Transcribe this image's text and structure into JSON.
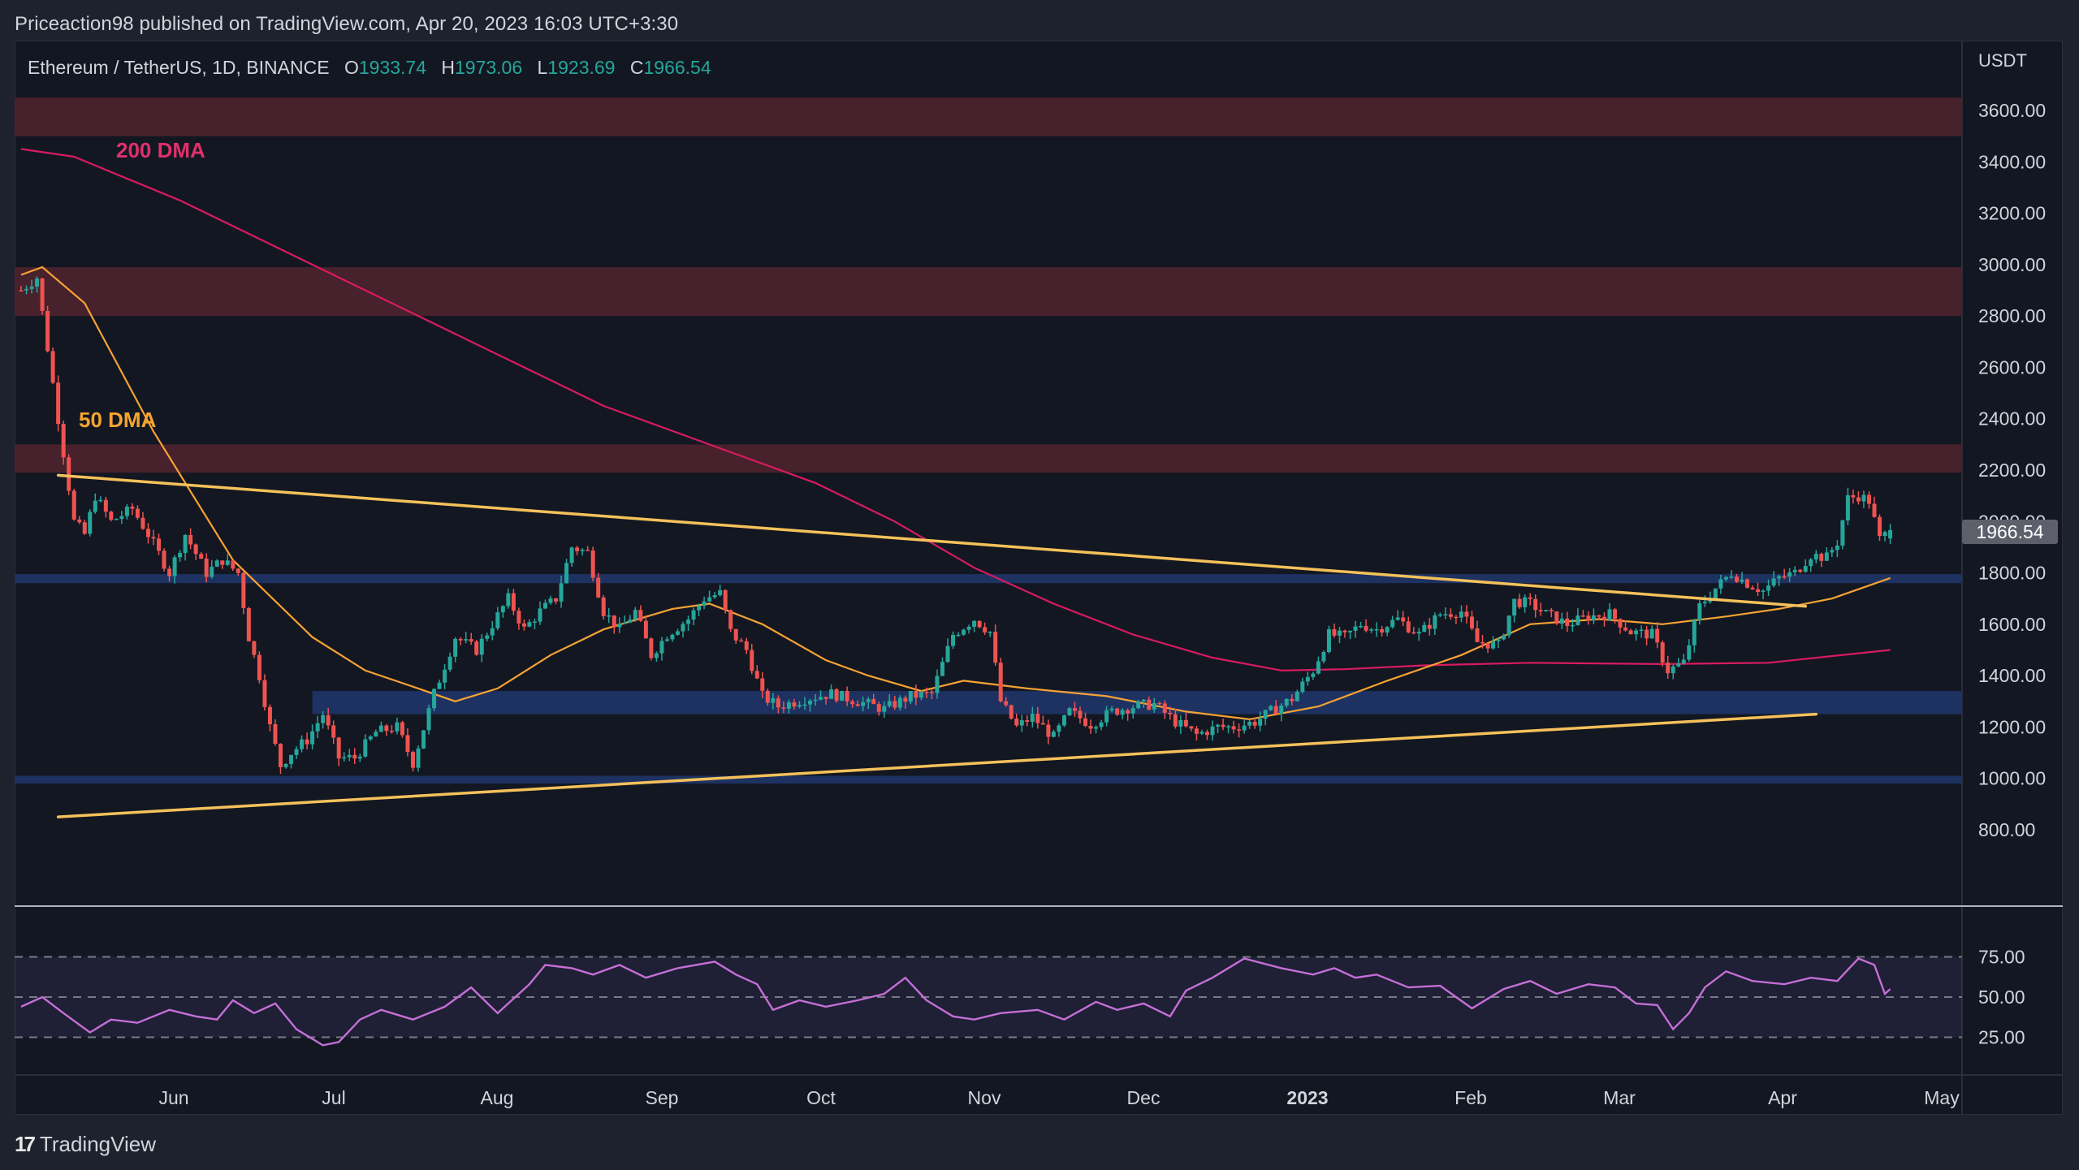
{
  "header": {
    "published": "Priceaction98 published on TradingView.com, Apr 20, 2023 16:03 UTC+3:30"
  },
  "legend": {
    "symbol": "Ethereum / TetherUS, 1D, BINANCE",
    "o_label": "O",
    "o_value": "1933.74",
    "h_label": "H",
    "h_value": "1973.06",
    "l_label": "L",
    "l_value": "1923.69",
    "c_label": "C",
    "c_value": "1966.54"
  },
  "price_axis": {
    "currency": "USDT",
    "ticks": [
      "3600.00",
      "3400.00",
      "3200.00",
      "3000.00",
      "2800.00",
      "2600.00",
      "2400.00",
      "2200.00",
      "2000.00",
      "1800.00",
      "1600.00",
      "1400.00",
      "1200.00",
      "1000.00",
      "800.00"
    ],
    "last_price": "1966.54"
  },
  "rsi_axis": {
    "ticks": [
      "75.00",
      "50.00",
      "25.00"
    ]
  },
  "time_axis": {
    "labels": [
      "Jun",
      "Jul",
      "Aug",
      "Sep",
      "Oct",
      "Nov",
      "Dec",
      "2023",
      "Feb",
      "Mar",
      "Apr",
      "May"
    ]
  },
  "annotations": {
    "dma200": "200 DMA",
    "dma50": "50 DMA"
  },
  "footer": {
    "brand": "TradingView",
    "brand_mark": "17"
  },
  "colors": {
    "up": "#26a69a",
    "down": "#ef5350",
    "dma50": "#f7a233",
    "dma200": "#d81b60",
    "trendline": "#f5c15a",
    "resistance_zone": "#4a222c",
    "support_zone": "#1f3466",
    "rsi": "#c46fd6"
  },
  "chart_data": {
    "type": "candlestick",
    "title": "Ethereum / TetherUS, 1D, BINANCE",
    "ylabel": "USDT",
    "ylim": [
      700,
      3750
    ],
    "y_ticks": [
      800,
      1000,
      1200,
      1400,
      1600,
      1800,
      2000,
      2200,
      2400,
      2600,
      2800,
      3000,
      3200,
      3400,
      3600
    ],
    "x_ticks": [
      "Jun",
      "Jul",
      "Aug",
      "Sep",
      "Oct",
      "Nov",
      "Dec",
      "2023",
      "Feb",
      "Mar",
      "Apr",
      "May"
    ],
    "x_start": "2022-05-02",
    "last_bar": {
      "date": "2023-04-20",
      "open": 1933.74,
      "high": 1973.06,
      "low": 1923.69,
      "close": 1966.54
    },
    "close_keypoints": [
      {
        "day": 0,
        "p": 2900
      },
      {
        "day": 3,
        "p": 2950
      },
      {
        "day": 7,
        "p": 2400
      },
      {
        "day": 10,
        "p": 2000
      },
      {
        "day": 12,
        "p": 1950
      },
      {
        "day": 14,
        "p": 2100
      },
      {
        "day": 17,
        "p": 2000
      },
      {
        "day": 21,
        "p": 2050
      },
      {
        "day": 24,
        "p": 1950
      },
      {
        "day": 28,
        "p": 1800
      },
      {
        "day": 31,
        "p": 1950
      },
      {
        "day": 35,
        "p": 1800
      },
      {
        "day": 38,
        "p": 1850
      },
      {
        "day": 41,
        "p": 1800
      },
      {
        "day": 43,
        "p": 1550
      },
      {
        "day": 45,
        "p": 1400
      },
      {
        "day": 47,
        "p": 1200
      },
      {
        "day": 49,
        "p": 1050
      },
      {
        "day": 51,
        "p": 1100
      },
      {
        "day": 54,
        "p": 1150
      },
      {
        "day": 57,
        "p": 1250
      },
      {
        "day": 60,
        "p": 1080
      },
      {
        "day": 63,
        "p": 1080
      },
      {
        "day": 67,
        "p": 1180
      },
      {
        "day": 71,
        "p": 1200
      },
      {
        "day": 74,
        "p": 1060
      },
      {
        "day": 78,
        "p": 1330
      },
      {
        "day": 82,
        "p": 1550
      },
      {
        "day": 86,
        "p": 1500
      },
      {
        "day": 89,
        "p": 1600
      },
      {
        "day": 92,
        "p": 1700
      },
      {
        "day": 95,
        "p": 1580
      },
      {
        "day": 98,
        "p": 1650
      },
      {
        "day": 101,
        "p": 1700
      },
      {
        "day": 104,
        "p": 1900
      },
      {
        "day": 107,
        "p": 1880
      },
      {
        "day": 110,
        "p": 1650
      },
      {
        "day": 113,
        "p": 1580
      },
      {
        "day": 116,
        "p": 1650
      },
      {
        "day": 119,
        "p": 1480
      },
      {
        "day": 122,
        "p": 1560
      },
      {
        "day": 126,
        "p": 1620
      },
      {
        "day": 129,
        "p": 1700
      },
      {
        "day": 132,
        "p": 1720
      },
      {
        "day": 134,
        "p": 1570
      },
      {
        "day": 137,
        "p": 1500
      },
      {
        "day": 140,
        "p": 1320
      },
      {
        "day": 143,
        "p": 1280
      },
      {
        "day": 148,
        "p": 1310
      },
      {
        "day": 153,
        "p": 1330
      },
      {
        "day": 158,
        "p": 1300
      },
      {
        "day": 163,
        "p": 1270
      },
      {
        "day": 168,
        "p": 1320
      },
      {
        "day": 172,
        "p": 1330
      },
      {
        "day": 176,
        "p": 1560
      },
      {
        "day": 180,
        "p": 1620
      },
      {
        "day": 183,
        "p": 1570
      },
      {
        "day": 185,
        "p": 1300
      },
      {
        "day": 188,
        "p": 1200
      },
      {
        "day": 191,
        "p": 1240
      },
      {
        "day": 195,
        "p": 1160
      },
      {
        "day": 198,
        "p": 1260
      },
      {
        "day": 202,
        "p": 1210
      },
      {
        "day": 206,
        "p": 1260
      },
      {
        "day": 210,
        "p": 1280
      },
      {
        "day": 214,
        "p": 1290
      },
      {
        "day": 218,
        "p": 1220
      },
      {
        "day": 222,
        "p": 1170
      },
      {
        "day": 226,
        "p": 1200
      },
      {
        "day": 229,
        "p": 1200
      },
      {
        "day": 233,
        "p": 1220
      },
      {
        "day": 236,
        "p": 1260
      },
      {
        "day": 240,
        "p": 1310
      },
      {
        "day": 244,
        "p": 1420
      },
      {
        "day": 247,
        "p": 1560
      },
      {
        "day": 250,
        "p": 1550
      },
      {
        "day": 253,
        "p": 1600
      },
      {
        "day": 256,
        "p": 1580
      },
      {
        "day": 260,
        "p": 1620
      },
      {
        "day": 264,
        "p": 1560
      },
      {
        "day": 268,
        "p": 1640
      },
      {
        "day": 272,
        "p": 1650
      },
      {
        "day": 275,
        "p": 1530
      },
      {
        "day": 279,
        "p": 1520
      },
      {
        "day": 282,
        "p": 1690
      },
      {
        "day": 285,
        "p": 1680
      },
      {
        "day": 288,
        "p": 1640
      },
      {
        "day": 292,
        "p": 1600
      },
      {
        "day": 296,
        "p": 1630
      },
      {
        "day": 300,
        "p": 1640
      },
      {
        "day": 304,
        "p": 1570
      },
      {
        "day": 308,
        "p": 1560
      },
      {
        "day": 311,
        "p": 1420
      },
      {
        "day": 314,
        "p": 1450
      },
      {
        "day": 317,
        "p": 1670
      },
      {
        "day": 320,
        "p": 1740
      },
      {
        "day": 323,
        "p": 1800
      },
      {
        "day": 326,
        "p": 1760
      },
      {
        "day": 329,
        "p": 1730
      },
      {
        "day": 332,
        "p": 1780
      },
      {
        "day": 335,
        "p": 1800
      },
      {
        "day": 338,
        "p": 1870
      },
      {
        "day": 341,
        "p": 1860
      },
      {
        "day": 343,
        "p": 1920
      },
      {
        "day": 345,
        "p": 2090
      },
      {
        "day": 347,
        "p": 2100
      },
      {
        "day": 349,
        "p": 2080
      },
      {
        "day": 351,
        "p": 1930
      },
      {
        "day": 353,
        "p": 1966.54
      }
    ],
    "dma50": {
      "name": "50 DMA",
      "points": [
        {
          "day": 0,
          "p": 2960
        },
        {
          "day": 4,
          "p": 2990
        },
        {
          "day": 12,
          "p": 2850
        },
        {
          "day": 25,
          "p": 2350
        },
        {
          "day": 40,
          "p": 1850
        },
        {
          "day": 55,
          "p": 1550
        },
        {
          "day": 65,
          "p": 1420
        },
        {
          "day": 75,
          "p": 1350
        },
        {
          "day": 82,
          "p": 1300
        },
        {
          "day": 90,
          "p": 1350
        },
        {
          "day": 100,
          "p": 1480
        },
        {
          "day": 110,
          "p": 1580
        },
        {
          "day": 123,
          "p": 1660
        },
        {
          "day": 130,
          "p": 1680
        },
        {
          "day": 140,
          "p": 1600
        },
        {
          "day": 152,
          "p": 1460
        },
        {
          "day": 160,
          "p": 1400
        },
        {
          "day": 170,
          "p": 1340
        },
        {
          "day": 178,
          "p": 1380
        },
        {
          "day": 190,
          "p": 1350
        },
        {
          "day": 205,
          "p": 1320
        },
        {
          "day": 220,
          "p": 1260
        },
        {
          "day": 232,
          "p": 1230
        },
        {
          "day": 245,
          "p": 1280
        },
        {
          "day": 258,
          "p": 1380
        },
        {
          "day": 272,
          "p": 1480
        },
        {
          "day": 285,
          "p": 1600
        },
        {
          "day": 298,
          "p": 1620
        },
        {
          "day": 310,
          "p": 1600
        },
        {
          "day": 322,
          "p": 1630
        },
        {
          "day": 332,
          "p": 1660
        },
        {
          "day": 342,
          "p": 1700
        },
        {
          "day": 353,
          "p": 1780
        }
      ]
    },
    "dma200": {
      "name": "200 DMA",
      "points": [
        {
          "day": 0,
          "p": 3450
        },
        {
          "day": 10,
          "p": 3420
        },
        {
          "day": 30,
          "p": 3250
        },
        {
          "day": 60,
          "p": 2950
        },
        {
          "day": 90,
          "p": 2650
        },
        {
          "day": 110,
          "p": 2450
        },
        {
          "day": 130,
          "p": 2300
        },
        {
          "day": 150,
          "p": 2150
        },
        {
          "day": 165,
          "p": 2000
        },
        {
          "day": 180,
          "p": 1820
        },
        {
          "day": 195,
          "p": 1680
        },
        {
          "day": 210,
          "p": 1560
        },
        {
          "day": 225,
          "p": 1470
        },
        {
          "day": 238,
          "p": 1420
        },
        {
          "day": 250,
          "p": 1425
        },
        {
          "day": 265,
          "p": 1440
        },
        {
          "day": 285,
          "p": 1450
        },
        {
          "day": 310,
          "p": 1445
        },
        {
          "day": 330,
          "p": 1450
        },
        {
          "day": 353,
          "p": 1500
        }
      ]
    },
    "trendlines": [
      {
        "name": "upper descending trendline",
        "from": {
          "day": 7,
          "p": 2180
        },
        "to": {
          "day": 337,
          "p": 1670
        }
      },
      {
        "name": "lower ascending trendline",
        "from": {
          "day": 7,
          "p": 850
        },
        "to": {
          "day": 339,
          "p": 1250
        }
      }
    ],
    "zones": [
      {
        "type": "resistance",
        "from": 3500,
        "to": 3650
      },
      {
        "type": "resistance",
        "from": 2800,
        "to": 2990
      },
      {
        "type": "resistance",
        "from": 2190,
        "to": 2300
      },
      {
        "type": "support",
        "from": 1760,
        "to": 1795
      },
      {
        "type": "support",
        "from": 1250,
        "to": 1340,
        "start_day": 55
      },
      {
        "type": "support",
        "from": 980,
        "to": 1010
      }
    ],
    "rsi": {
      "ylim": [
        0,
        100
      ],
      "levels": [
        75,
        50,
        25
      ],
      "points": [
        {
          "day": 0,
          "v": 44
        },
        {
          "day": 4,
          "v": 50
        },
        {
          "day": 8,
          "v": 40
        },
        {
          "day": 13,
          "v": 28
        },
        {
          "day": 17,
          "v": 36
        },
        {
          "day": 22,
          "v": 34
        },
        {
          "day": 28,
          "v": 42
        },
        {
          "day": 33,
          "v": 38
        },
        {
          "day": 37,
          "v": 36
        },
        {
          "day": 40,
          "v": 48
        },
        {
          "day": 44,
          "v": 40
        },
        {
          "day": 48,
          "v": 46
        },
        {
          "day": 52,
          "v": 30
        },
        {
          "day": 57,
          "v": 20
        },
        {
          "day": 60,
          "v": 22
        },
        {
          "day": 64,
          "v": 36
        },
        {
          "day": 68,
          "v": 42
        },
        {
          "day": 74,
          "v": 36
        },
        {
          "day": 80,
          "v": 44
        },
        {
          "day": 85,
          "v": 56
        },
        {
          "day": 90,
          "v": 40
        },
        {
          "day": 96,
          "v": 58
        },
        {
          "day": 99,
          "v": 70
        },
        {
          "day": 104,
          "v": 68
        },
        {
          "day": 108,
          "v": 64
        },
        {
          "day": 113,
          "v": 70
        },
        {
          "day": 118,
          "v": 62
        },
        {
          "day": 124,
          "v": 68
        },
        {
          "day": 131,
          "v": 72
        },
        {
          "day": 135,
          "v": 64
        },
        {
          "day": 139,
          "v": 58
        },
        {
          "day": 142,
          "v": 42
        },
        {
          "day": 147,
          "v": 48
        },
        {
          "day": 152,
          "v": 44
        },
        {
          "day": 158,
          "v": 48
        },
        {
          "day": 163,
          "v": 52
        },
        {
          "day": 167,
          "v": 62
        },
        {
          "day": 171,
          "v": 48
        },
        {
          "day": 176,
          "v": 38
        },
        {
          "day": 180,
          "v": 36
        },
        {
          "day": 185,
          "v": 40
        },
        {
          "day": 192,
          "v": 42
        },
        {
          "day": 197,
          "v": 36
        },
        {
          "day": 203,
          "v": 47
        },
        {
          "day": 207,
          "v": 42
        },
        {
          "day": 212,
          "v": 46
        },
        {
          "day": 217,
          "v": 38
        },
        {
          "day": 220,
          "v": 54
        },
        {
          "day": 225,
          "v": 62
        },
        {
          "day": 231,
          "v": 74
        },
        {
          "day": 238,
          "v": 68
        },
        {
          "day": 244,
          "v": 64
        },
        {
          "day": 248,
          "v": 68
        },
        {
          "day": 252,
          "v": 62
        },
        {
          "day": 256,
          "v": 64
        },
        {
          "day": 262,
          "v": 56
        },
        {
          "day": 268,
          "v": 57
        },
        {
          "day": 274,
          "v": 43
        },
        {
          "day": 280,
          "v": 55
        },
        {
          "day": 285,
          "v": 60
        },
        {
          "day": 290,
          "v": 52
        },
        {
          "day": 296,
          "v": 58
        },
        {
          "day": 301,
          "v": 56
        },
        {
          "day": 305,
          "v": 46
        },
        {
          "day": 309,
          "v": 45
        },
        {
          "day": 312,
          "v": 30
        },
        {
          "day": 315,
          "v": 40
        },
        {
          "day": 318,
          "v": 56
        },
        {
          "day": 322,
          "v": 66
        },
        {
          "day": 327,
          "v": 60
        },
        {
          "day": 333,
          "v": 58
        },
        {
          "day": 338,
          "v": 62
        },
        {
          "day": 343,
          "v": 60
        },
        {
          "day": 347,
          "v": 74
        },
        {
          "day": 350,
          "v": 70
        },
        {
          "day": 352,
          "v": 52
        },
        {
          "day": 353,
          "v": 55
        }
      ]
    }
  }
}
